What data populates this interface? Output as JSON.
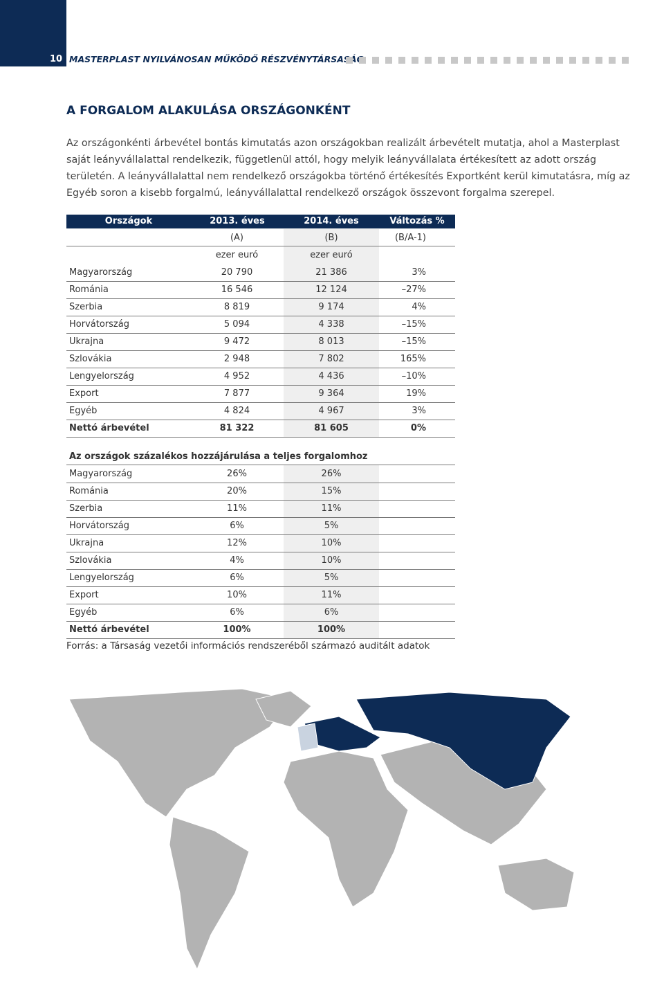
{
  "header": {
    "page_number": "10",
    "title": "MASTERPLAST NYILVÁNOSAN MŰKÖDŐ RÉSZVÉNYTÁRSASÁG"
  },
  "section_title": "A FORGALOM ALAKULÁSA ORSZÁGONKÉNT",
  "paragraph": "Az országonkénti árbevétel bontás kimutatás azon országokban realizált árbevételt mutatja, ahol a Masterplast saját leányvállalattal rendelkezik, függetlenül attól, hogy melyik leányvállalata értékesített az adott ország területén. A leányvállalattal nem rendelkező országokba történő értékesítés Exportként kerül kimutatásra, míg az Egyéb soron a kisebb forgalmú, leányvállalattal rendelkező országok összevont forgalma szerepel.",
  "table": {
    "header": [
      "Országok",
      "2013. éves",
      "2014. éves",
      "Változás %"
    ],
    "subheader": [
      "(A)",
      "(B)",
      "(B/A-1)"
    ],
    "units": [
      "ezer euró",
      "ezer euró"
    ],
    "rows": [
      [
        "Magyarország",
        "20 790",
        "21 386",
        "3%"
      ],
      [
        "Románia",
        "16 546",
        "12 124",
        "–27%"
      ],
      [
        "Szerbia",
        "8 819",
        "9 174",
        "4%"
      ],
      [
        "Horvátország",
        "5 094",
        "4 338",
        "–15%"
      ],
      [
        "Ukrajna",
        "9 472",
        "8 013",
        "–15%"
      ],
      [
        "Szlovákia",
        "2 948",
        "7 802",
        "165%"
      ],
      [
        "Lengyelország",
        "4 952",
        "4 436",
        "–10%"
      ],
      [
        "Export",
        "7 877",
        "9 364",
        "19%"
      ],
      [
        "Egyéb",
        "4 824",
        "4 967",
        "3%"
      ],
      [
        "Nettó árbevétel",
        "81 322",
        "81 605",
        "0%"
      ]
    ]
  },
  "share_table": {
    "title": "Az országok százalékos hozzájárulása a teljes forgalomhoz",
    "rows": [
      [
        "Magyarország",
        "26%",
        "26%"
      ],
      [
        "Románia",
        "20%",
        "15%"
      ],
      [
        "Szerbia",
        "11%",
        "11%"
      ],
      [
        "Horvátország",
        "6%",
        "5%"
      ],
      [
        "Ukrajna",
        "12%",
        "10%"
      ],
      [
        "Szlovákia",
        "4%",
        "10%"
      ],
      [
        "Lengyelország",
        "6%",
        "5%"
      ],
      [
        "Export",
        "10%",
        "11%"
      ],
      [
        "Egyéb",
        "6%",
        "6%"
      ],
      [
        "Nettó árbevétel",
        "100%",
        "100%"
      ]
    ]
  },
  "source": "Forrás: a Társaság vezetői információs rendszeréből származó auditált adatok"
}
